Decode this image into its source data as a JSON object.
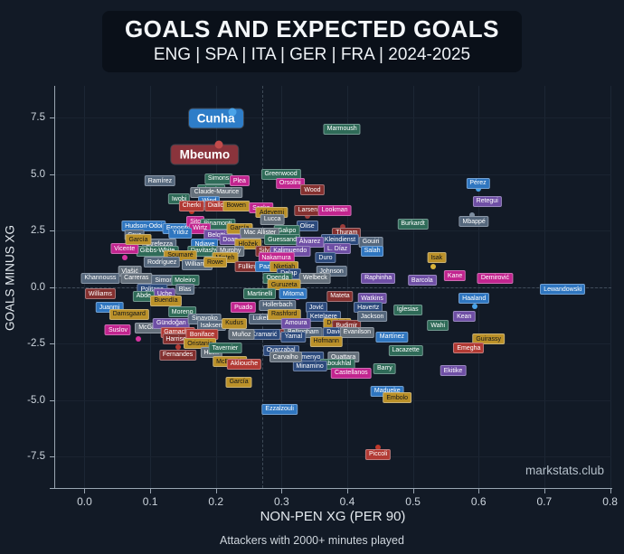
{
  "header": {
    "title": "GOALS AND EXPECTED GOALS",
    "subtitle": "ENG | SPA | ITA | GER | FRA | 2024-2025"
  },
  "footer_note": "Attackers with 2000+ minutes played",
  "watermark": "markstats.club",
  "palette": {
    "mg": "#c2258f",
    "dr": "#84302f",
    "rd": "#b23a34",
    "pu": "#6f4fa5",
    "nv": "#2c4a7c",
    "bl": "#2f76c0",
    "sl": "#55677c",
    "gy": "#65707b",
    "tl": "#2f6b58",
    "gd": "#bb9129",
    "accent_cunha": "#2e7dc8",
    "accent_mbeumo": "#8a343c",
    "dot_cunha": "#4aa3e8",
    "dot_mbeumo": "#c14b4b"
  },
  "chart_data": {
    "type": "scatter",
    "title": "GOALS AND EXPECTED GOALS",
    "subtitle": "ENG | SPA | ITA | GER | FRA | 2024-2025",
    "xlabel": "NON-PEN XG (PER 90)",
    "ylabel": "GOALS MINUS XG",
    "xlim": [
      -0.046,
      0.802
    ],
    "ylim": [
      -8.9,
      8.9
    ],
    "x_ticks": [
      0.0,
      0.1,
      0.2,
      0.3,
      0.4,
      0.5,
      0.6,
      0.7,
      0.8
    ],
    "y_ticks": [
      7.5,
      5.0,
      2.5,
      0.0,
      -2.5,
      -5.0,
      -7.5
    ],
    "grid": true,
    "ref_line_x": 0.27,
    "ref_line_y": 0.0,
    "highlighted": [
      {
        "name": "Cunha",
        "x": 0.2,
        "y": 7.45,
        "bg": "accent_cunha",
        "dot_x": 0.225,
        "dot_y": 7.75,
        "dot_c": "dot_cunha"
      },
      {
        "name": "Mbeumo",
        "x": 0.183,
        "y": 5.85,
        "bg": "accent_mbeumo",
        "dot_x": 0.204,
        "dot_y": 6.3,
        "dot_c": "dot_mbeumo"
      }
    ],
    "players": [
      [
        "Marmoush",
        0.392,
        7.0,
        "tl"
      ],
      [
        "Greenwood",
        0.299,
        5.0,
        "tl"
      ],
      [
        "Ramírez",
        0.115,
        4.7,
        "sl"
      ],
      [
        "Simons",
        0.204,
        4.8,
        "tl"
      ],
      [
        "Plea",
        0.236,
        4.7,
        "mg"
      ],
      [
        "Orsolini",
        0.313,
        4.6,
        "mg"
      ],
      [
        "Pérez",
        0.599,
        4.6,
        "bl"
      ],
      [
        "Wood",
        0.347,
        4.3,
        "dr"
      ],
      [
        "Nkunku",
        0.193,
        4.3,
        "tl"
      ],
      [
        "Claude-Maurice",
        0.201,
        4.2,
        "gy"
      ],
      [
        "Wind",
        0.19,
        3.8,
        "bl"
      ],
      [
        "Iwobi",
        0.144,
        3.9,
        "tl"
      ],
      [
        "Retegui",
        0.613,
        3.8,
        "pu"
      ],
      [
        "Cherki",
        0.163,
        3.6,
        "rd"
      ],
      [
        "Diallo",
        0.2,
        3.6,
        "rd"
      ],
      [
        "Bowen",
        0.231,
        3.6,
        "gd"
      ],
      [
        "Sesko",
        0.269,
        3.5,
        "mg"
      ],
      [
        "Larsen",
        0.34,
        3.4,
        "dr"
      ],
      [
        "Lookman",
        0.381,
        3.4,
        "mg"
      ],
      [
        "Mbappé",
        0.593,
        2.9,
        "sl"
      ],
      [
        "Burkardt",
        0.5,
        2.8,
        "tl"
      ],
      [
        "Adeyemi",
        0.285,
        3.3,
        "gd"
      ],
      [
        "Lucca",
        0.286,
        3.0,
        "gy"
      ],
      [
        "Hudson-Odoi",
        0.09,
        2.7,
        "bl"
      ],
      [
        "Esposito",
        0.143,
        2.6,
        "bl"
      ],
      [
        "Sito",
        0.169,
        2.9,
        "mg"
      ],
      [
        "Pinamonti",
        0.203,
        2.8,
        "tl"
      ],
      [
        "Wirtz",
        0.176,
        2.6,
        "mg"
      ],
      [
        "Yıldız",
        0.146,
        2.4,
        "bl"
      ],
      [
        "Belotti",
        0.201,
        2.3,
        "pu"
      ],
      [
        "García",
        0.236,
        2.6,
        "gd"
      ],
      [
        "Olise",
        0.339,
        2.7,
        "nv"
      ],
      [
        "Gakpo",
        0.308,
        2.5,
        "tl"
      ],
      [
        "Mac Allister",
        0.267,
        2.4,
        "gy"
      ],
      [
        "Thuram",
        0.399,
        2.4,
        "dr"
      ],
      [
        "Kleindienst",
        0.389,
        2.1,
        "nv"
      ],
      [
        "Guessand",
        0.301,
        2.1,
        "tl"
      ],
      [
        "Doan",
        0.222,
        2.1,
        "pu"
      ],
      [
        "Hložek",
        0.249,
        1.9,
        "gd"
      ],
      [
        "Álvarez",
        0.343,
        2.0,
        "pu"
      ],
      [
        "Gouiri",
        0.436,
        2.0,
        "sl"
      ],
      [
        "L. Díaz",
        0.385,
        1.7,
        "pu"
      ],
      [
        "Salah",
        0.438,
        1.6,
        "bl"
      ],
      [
        "Ndiaye",
        0.183,
        1.9,
        "bl"
      ],
      [
        "Davitashvili",
        0.186,
        1.6,
        "tl"
      ],
      [
        "Strefezza",
        0.114,
        1.9,
        "sl"
      ],
      [
        "Gibbs-White",
        0.111,
        1.6,
        "tl"
      ],
      [
        "Vicente",
        0.061,
        1.7,
        "mg"
      ],
      [
        "Soumaré",
        0.146,
        1.4,
        "gd"
      ],
      [
        "Murphy",
        0.222,
        1.6,
        "gy"
      ],
      [
        "Silva",
        0.276,
        1.6,
        "dr"
      ],
      [
        "Kalimuendo",
        0.313,
        1.6,
        "pu"
      ],
      [
        "Minteh",
        0.214,
        1.3,
        "gd"
      ],
      [
        "Nakamura",
        0.292,
        1.3,
        "mg"
      ],
      [
        "Duro",
        0.367,
        1.3,
        "nv"
      ],
      [
        "Rodríguez",
        0.118,
        1.1,
        "sl"
      ],
      [
        "Williams",
        0.171,
        1.0,
        "sl"
      ],
      [
        "Rowe",
        0.199,
        1.1,
        "gd"
      ],
      [
        "Vlašić",
        0.069,
        0.7,
        "gy"
      ],
      [
        "Cruz",
        0.076,
        2.3,
        "sl"
      ],
      [
        "García",
        0.082,
        2.1,
        "gd"
      ],
      [
        "Füllkrug",
        0.251,
        0.9,
        "dr"
      ],
      [
        "Paz",
        0.274,
        0.9,
        "bl"
      ],
      [
        "Nketiah",
        0.304,
        0.9,
        "gd"
      ],
      [
        "Delap",
        0.311,
        0.6,
        "nv"
      ],
      [
        "Johnson",
        0.376,
        0.7,
        "sl"
      ],
      [
        "Khannouss",
        0.024,
        0.4,
        "sl"
      ],
      [
        "Carreras",
        0.079,
        0.4,
        "gy"
      ],
      [
        "Simon",
        0.121,
        0.3,
        "sl"
      ],
      [
        "Moleiro",
        0.153,
        0.3,
        "tl"
      ],
      [
        "Openda",
        0.294,
        0.4,
        "tl"
      ],
      [
        "Welbeck",
        0.351,
        0.4,
        "gy"
      ],
      [
        "Raphinha",
        0.447,
        0.4,
        "pu"
      ],
      [
        "Guruzeta",
        0.304,
        0.1,
        "gd"
      ],
      [
        "Lewandowski",
        0.728,
        -0.1,
        "bl"
      ],
      [
        "Politano",
        0.103,
        -0.1,
        "nv"
      ],
      [
        "Williams",
        0.024,
        -0.3,
        "dr"
      ],
      [
        "Uche",
        0.122,
        -0.3,
        "pu"
      ],
      [
        "Abde",
        0.09,
        -0.4,
        "tl"
      ],
      [
        "Blas",
        0.153,
        -0.1,
        "sl"
      ],
      [
        "Buendía",
        0.124,
        -0.6,
        "gd"
      ],
      [
        "Martinelli",
        0.267,
        -0.3,
        "tl"
      ],
      [
        "Mitoma",
        0.318,
        -0.3,
        "bl"
      ],
      [
        "Mateta",
        0.389,
        -0.4,
        "dr"
      ],
      [
        "Watkins",
        0.438,
        -0.5,
        "pu"
      ],
      [
        "Iglesias",
        0.492,
        -1.0,
        "tl"
      ],
      [
        "Haaland",
        0.593,
        -0.5,
        "bl"
      ],
      [
        "Kane",
        0.564,
        0.5,
        "mg"
      ],
      [
        "Demirović",
        0.625,
        0.4,
        "mg"
      ],
      [
        "Isak",
        0.536,
        1.3,
        "gd"
      ],
      [
        "Barcola",
        0.514,
        0.3,
        "pu"
      ],
      [
        "Kean",
        0.578,
        -1.3,
        "pu"
      ],
      [
        "Wahi",
        0.538,
        -1.7,
        "tl"
      ],
      [
        "Martínez",
        0.468,
        -2.2,
        "bl"
      ],
      [
        "Lacazette",
        0.489,
        -2.8,
        "tl"
      ],
      [
        "Guirassy",
        0.615,
        -2.3,
        "gd"
      ],
      [
        "Emegha",
        0.585,
        -2.7,
        "rd"
      ],
      [
        "Ekitike",
        0.561,
        -3.7,
        "pu"
      ],
      [
        "Juanmi",
        0.038,
        -0.9,
        "bl"
      ],
      [
        "Damsgaard",
        0.068,
        -1.2,
        "gd"
      ],
      [
        "Suslov",
        0.051,
        -1.9,
        "mg"
      ],
      [
        "McGinn",
        0.099,
        -1.8,
        "gy"
      ],
      [
        "Gündoğan",
        0.132,
        -1.6,
        "pu"
      ],
      [
        "Moreno",
        0.149,
        -1.1,
        "tl"
      ],
      [
        "Sinayoko",
        0.183,
        -1.4,
        "sl"
      ],
      [
        "Isaksen",
        0.193,
        -1.7,
        "sl"
      ],
      [
        "Garnacho",
        0.142,
        -2.0,
        "rd"
      ],
      [
        "Harrison",
        0.142,
        -2.3,
        "dr"
      ],
      [
        "Boniface",
        0.179,
        -2.1,
        "rd"
      ],
      [
        "Oristanio",
        0.176,
        -2.5,
        "gd"
      ],
      [
        "Fernandes",
        0.142,
        -3.0,
        "dr"
      ],
      [
        "Holm",
        0.193,
        -2.9,
        "gy"
      ],
      [
        "Tavernier",
        0.214,
        -2.7,
        "tl"
      ],
      [
        "McBurnie",
        0.221,
        -3.3,
        "gd"
      ],
      [
        "Kudus",
        0.228,
        -1.6,
        "gd"
      ],
      [
        "Puado",
        0.242,
        -0.9,
        "mg"
      ],
      [
        "Hollerbach",
        0.294,
        -0.8,
        "sl"
      ],
      [
        "Jović",
        0.353,
        -0.9,
        "nv"
      ],
      [
        "Havertz",
        0.432,
        -0.9,
        "nv"
      ],
      [
        "Lukebakio",
        0.278,
        -1.4,
        "sl"
      ],
      [
        "Rashford",
        0.304,
        -1.2,
        "gd"
      ],
      [
        "Ketelaere",
        0.364,
        -1.3,
        "nv"
      ],
      [
        "Dovbyk",
        0.385,
        -1.6,
        "gd"
      ],
      [
        "Budimir",
        0.399,
        -1.7,
        "dr"
      ],
      [
        "David",
        0.381,
        -2.0,
        "nv"
      ],
      [
        "Evanilson",
        0.415,
        -2.0,
        "gy"
      ],
      [
        "Jackson",
        0.438,
        -1.3,
        "sl"
      ],
      [
        "Muriqi",
        0.288,
        -2.1,
        "dr"
      ],
      [
        "Bellingham",
        0.333,
        -2.0,
        "sl"
      ],
      [
        "Yamal",
        0.318,
        -2.2,
        "nv"
      ],
      [
        "Hofmann",
        0.368,
        -2.4,
        "gd"
      ],
      [
        "Kramarić",
        0.274,
        -2.1,
        "nv"
      ],
      [
        "Muñoz",
        0.239,
        -2.1,
        "gy"
      ],
      [
        "Amoura",
        0.322,
        -1.6,
        "pu"
      ],
      [
        "Oyarzabal",
        0.299,
        -2.8,
        "nv"
      ],
      [
        "Semenyo",
        0.339,
        -3.1,
        "nv"
      ],
      [
        "Ouattara",
        0.394,
        -3.1,
        "gy"
      ],
      [
        "Aboukhlal",
        0.385,
        -3.4,
        "tl"
      ],
      [
        "Minamino",
        0.343,
        -3.5,
        "nv"
      ],
      [
        "Carvalho",
        0.306,
        -3.1,
        "gy"
      ],
      [
        "Akliouche",
        0.243,
        -3.4,
        "rd"
      ],
      [
        "Castellanos",
        0.406,
        -3.8,
        "mg"
      ],
      [
        "Barry",
        0.457,
        -3.6,
        "tl"
      ],
      [
        "Madueke",
        0.461,
        -4.6,
        "bl"
      ],
      [
        "Embolo",
        0.476,
        -4.9,
        "gd"
      ],
      [
        "Ezzalzouli",
        0.297,
        -5.4,
        "bl"
      ],
      [
        "Piccoli",
        0.447,
        -7.4,
        "rd"
      ],
      [
        "García",
        0.235,
        -4.2,
        "gd"
      ]
    ],
    "dots": [
      {
        "x": 0.163,
        "y": 3.35,
        "c": "#c0392b"
      },
      {
        "x": 0.531,
        "y": 0.9,
        "c": "#d8b23a"
      },
      {
        "x": 0.594,
        "y": -0.85,
        "c": "#4aa3e8"
      },
      {
        "x": 0.061,
        "y": 1.3,
        "c": "#d633a1"
      },
      {
        "x": 0.324,
        "y": -0.45,
        "c": "#d633a1"
      },
      {
        "x": 0.142,
        "y": -2.65,
        "c": "#b23a34"
      },
      {
        "x": 0.447,
        "y": -7.1,
        "c": "#c0392b"
      },
      {
        "x": 0.599,
        "y": 4.35,
        "c": "#4aa3e8"
      },
      {
        "x": 0.34,
        "y": 3.15,
        "c": "#9c3c3a"
      },
      {
        "x": 0.393,
        "y": 2.65,
        "c": "#9c3c3a"
      },
      {
        "x": 0.236,
        "y": 2.35,
        "c": "#d8b23a"
      },
      {
        "x": 0.082,
        "y": -2.3,
        "c": "#d633a1"
      },
      {
        "x": 0.269,
        "y": 3.25,
        "c": "#d633a1"
      },
      {
        "x": 0.303,
        "y": -0.15,
        "c": "#3aa0d8"
      },
      {
        "x": 0.385,
        "y": -2.35,
        "c": "#d8b23a"
      },
      {
        "x": 0.59,
        "y": 3.2,
        "c": "#7d8da0"
      }
    ]
  }
}
